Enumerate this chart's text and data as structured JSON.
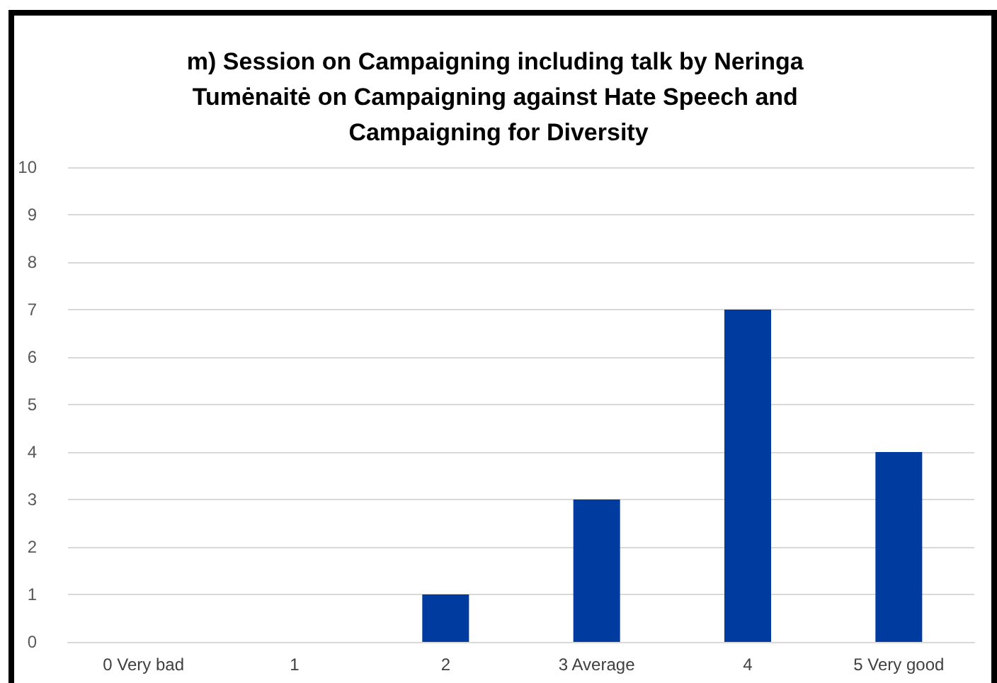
{
  "chart_data": {
    "type": "bar",
    "title": "m) Session on Campaigning including talk by Neringa Tumėnaitė on Campaigning against Hate Speech and Campaigning for Diversity",
    "categories": [
      "0 Very bad",
      "1",
      "2",
      "3 Average",
      "4",
      "5 Very good"
    ],
    "values": [
      0,
      0,
      1,
      3,
      7,
      4
    ],
    "color": "#003ca0",
    "ylim": [
      0,
      10
    ],
    "yticks": [
      0,
      1,
      2,
      3,
      4,
      5,
      6,
      7,
      8,
      9,
      10
    ],
    "grid": "y"
  }
}
